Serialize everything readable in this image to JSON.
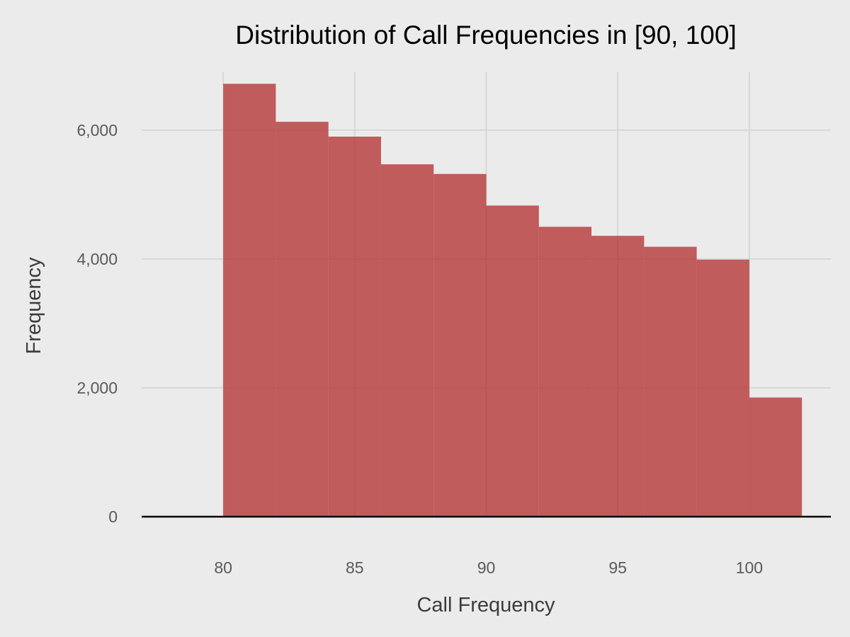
{
  "chart_data": {
    "type": "bar",
    "title": "Distribution of Call Frequencies in [90, 100]",
    "xlabel": "Call Frequency",
    "ylabel": "Frequency",
    "bin_edges": [
      80,
      82,
      84,
      86,
      88,
      90,
      92,
      94,
      96,
      98,
      100,
      102
    ],
    "values": [
      6720,
      6130,
      5900,
      5470,
      5320,
      4830,
      4500,
      4360,
      4190,
      3990,
      1850
    ],
    "xlim": [
      76.9,
      103.1
    ],
    "ylim": [
      0,
      6900
    ],
    "x_ticks": [
      80,
      85,
      90,
      95,
      100
    ],
    "x_tick_labels": [
      "80",
      "85",
      "90",
      "95",
      "100"
    ],
    "y_ticks": [
      0,
      2000,
      4000,
      6000
    ],
    "y_tick_labels": [
      "0",
      "2,000",
      "4,000",
      "6,000"
    ],
    "grid": true,
    "colors": {
      "background": "#ebebeb",
      "bar": "#b22c2b",
      "grid": "#d2d2d2",
      "baseline": "#000000"
    }
  }
}
